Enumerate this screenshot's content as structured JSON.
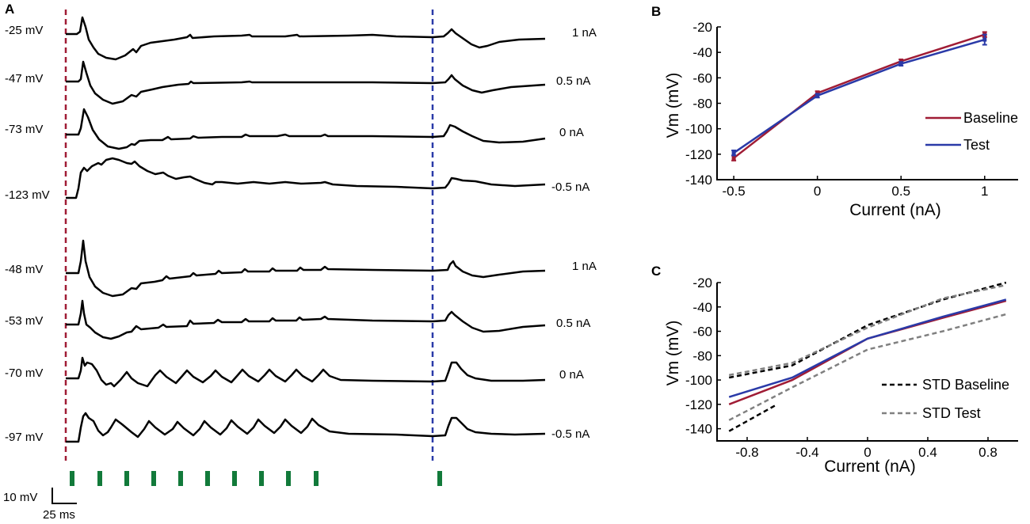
{
  "panels": {
    "A": {
      "letter": "A",
      "top_traces": [
        {
          "vlabel": "-25 mV",
          "current": "1 nA"
        },
        {
          "vlabel": "-47 mV",
          "current": "0.5 nA"
        },
        {
          "vlabel": "-73 mV",
          "current": "0 nA"
        },
        {
          "vlabel": "-123 mV",
          "current": "-0.5 nA"
        }
      ],
      "bottom_traces": [
        {
          "vlabel": "-48 mV",
          "current": "1 nA"
        },
        {
          "vlabel": "-53 mV",
          "current": "0.5 nA"
        },
        {
          "vlabel": "-70 mV",
          "current": "0 nA"
        },
        {
          "vlabel": "-97 mV",
          "current": "-0.5 nA"
        }
      ],
      "scalebar": {
        "v_label": "10 mV",
        "t_label": "25 ms"
      },
      "stimulus_count": 11,
      "colors": {
        "trace": "#000000",
        "start_line": "#a01c35",
        "end_line": "#2a3aa8",
        "stimulus": "#127a3a"
      }
    }
  },
  "chart_data": [
    {
      "panel": "B",
      "type": "line",
      "xlabel": "Current (nA)",
      "ylabel": "Vm (mV)",
      "xlim": [
        -0.6,
        1.2
      ],
      "ylim": [
        -140,
        -20
      ],
      "xticks": [
        -0.5,
        0,
        0.5,
        1
      ],
      "xtick_labels": [
        "-0.5",
        "0",
        "0.5",
        "1"
      ],
      "yticks": [
        -20,
        -40,
        -60,
        -80,
        -100,
        -120,
        -140
      ],
      "ytick_labels": [
        "-20",
        "-40",
        "-60",
        "-80",
        "-100",
        "-120",
        "-140"
      ],
      "x": [
        -0.5,
        0,
        0.5,
        1
      ],
      "series": [
        {
          "name": "Baseline",
          "color": "#a01c35",
          "values": [
            -123,
            -72,
            -47,
            -26
          ],
          "err": [
            2,
            1.5,
            1.5,
            2
          ]
        },
        {
          "name": "Test",
          "color": "#2a3aa8",
          "values": [
            -119,
            -74,
            -49,
            -30
          ],
          "err": [
            2,
            1.5,
            1.5,
            4
          ]
        }
      ],
      "legend": "right"
    },
    {
      "panel": "C",
      "type": "line",
      "xlabel": "Current (nA)",
      "ylabel": "Vm (mV)",
      "xlim": [
        -1.0,
        1.0
      ],
      "ylim": [
        -150,
        -20
      ],
      "xticks": [
        -0.8,
        -0.4,
        0,
        0.4,
        0.8
      ],
      "xtick_labels": [
        "-0.8",
        "-0.4",
        "0",
        "0.4",
        "0.8"
      ],
      "yticks": [
        -20,
        -40,
        -60,
        -80,
        -100,
        -120,
        -140
      ],
      "ytick_labels": [
        "-20",
        "-40",
        "-60",
        "-80",
        "-100",
        "-120",
        "-140"
      ],
      "series": [
        {
          "name": "Baseline",
          "color": "#a01c35",
          "dash": false,
          "x": [
            -0.92,
            -0.5,
            0,
            0.5,
            0.92
          ],
          "values": [
            -120,
            -100,
            -66,
            -49,
            -35
          ]
        },
        {
          "name": "Test",
          "color": "#2a3aa8",
          "dash": false,
          "x": [
            -0.92,
            -0.5,
            0,
            0.5,
            0.92
          ],
          "values": [
            -114,
            -98,
            -66,
            -48,
            -34
          ]
        },
        {
          "name": "STD Baseline upper",
          "color": "#000000",
          "dash": true,
          "x": [
            -0.92,
            -0.5,
            0,
            0.5,
            0.92
          ],
          "values": [
            -98,
            -88,
            -55,
            -34,
            -20
          ]
        },
        {
          "name": "STD Baseline lower",
          "color": "#000000",
          "dash": true,
          "x": [
            -0.92,
            -0.6
          ],
          "values": [
            -142,
            -120
          ]
        },
        {
          "name": "STD Test upper",
          "color": "#808080",
          "dash": true,
          "x": [
            -0.92,
            -0.5,
            0,
            0.5,
            0.92
          ],
          "values": [
            -96,
            -86,
            -57,
            -33,
            -22
          ]
        },
        {
          "name": "STD Test lower",
          "color": "#808080",
          "dash": true,
          "x": [
            -0.92,
            -0.5,
            0,
            0.5,
            0.92
          ],
          "values": [
            -133,
            -106,
            -75,
            -60,
            -46
          ]
        }
      ],
      "legend_entries": [
        {
          "label": "STD Baseline",
          "color": "#000000"
        },
        {
          "label": "STD Test",
          "color": "#808080"
        }
      ],
      "legend": "bottom-right"
    }
  ]
}
